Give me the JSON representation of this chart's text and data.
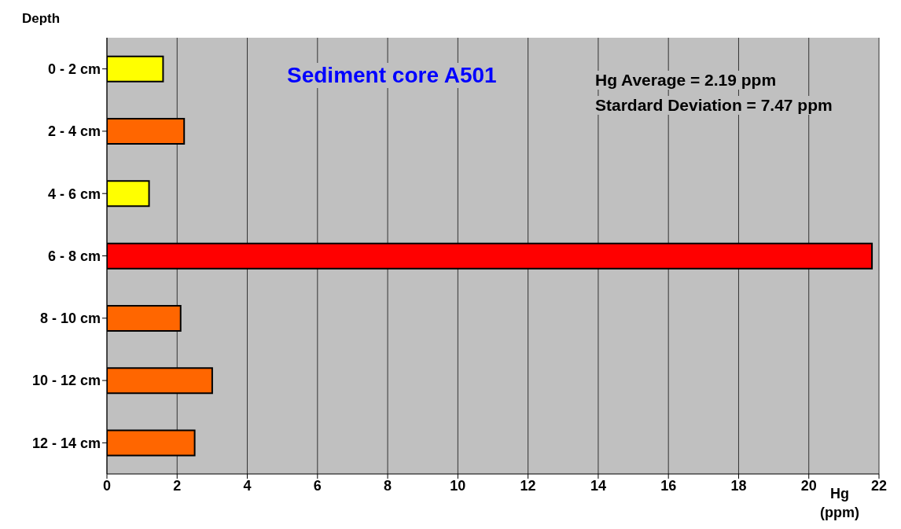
{
  "chart_data": {
    "type": "bar",
    "orientation": "horizontal",
    "title": "Sediment core A501",
    "xlabel": "Hg (ppm)",
    "ylabel": "Depth",
    "categories": [
      "0 - 2 cm",
      "2 - 4 cm",
      "4 - 6 cm",
      "6 - 8 cm",
      "8 - 10 cm",
      "10 - 12 cm",
      "12 - 14 cm"
    ],
    "values": [
      1.6,
      2.2,
      1.2,
      21.8,
      2.1,
      3.0,
      2.5
    ],
    "colors": [
      "#ffff00",
      "#ff6600",
      "#ffff00",
      "#ff0000",
      "#ff6600",
      "#ff6600",
      "#ff6600"
    ],
    "xlim": [
      0,
      22
    ],
    "xticks": [
      0,
      2,
      4,
      6,
      8,
      10,
      12,
      14,
      16,
      18,
      20,
      22
    ],
    "grid": "x",
    "annotations": [
      "Hg Average = 2.19 ppm",
      "Stardard Deviation = 7.47 ppm"
    ]
  }
}
